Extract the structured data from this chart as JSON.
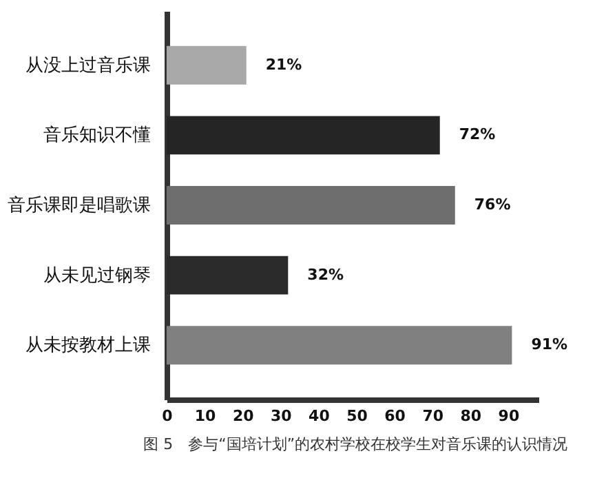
{
  "chart_data": {
    "type": "bar",
    "orientation": "horizontal",
    "title": "图 5　参与“国培计划”的农村学校在校学生对音乐课的认识情况",
    "categories": [
      "从没上过音乐课",
      "音乐知识不懂",
      "音乐课即是唱歌课",
      "从未见过钢琴",
      "从未按教材上课"
    ],
    "values": [
      21,
      72,
      76,
      32,
      91
    ],
    "colors": [
      "#a8a8a8",
      "#252525",
      "#6e6e6e",
      "#2a2a2a",
      "#808080"
    ],
    "value_labels": [
      "21%",
      "72%",
      "76%",
      "32%",
      "91%"
    ],
    "xlim": [
      0,
      98
    ],
    "xticks": [
      0,
      10,
      20,
      30,
      40,
      50,
      60,
      70,
      80,
      90
    ],
    "grid": false
  }
}
